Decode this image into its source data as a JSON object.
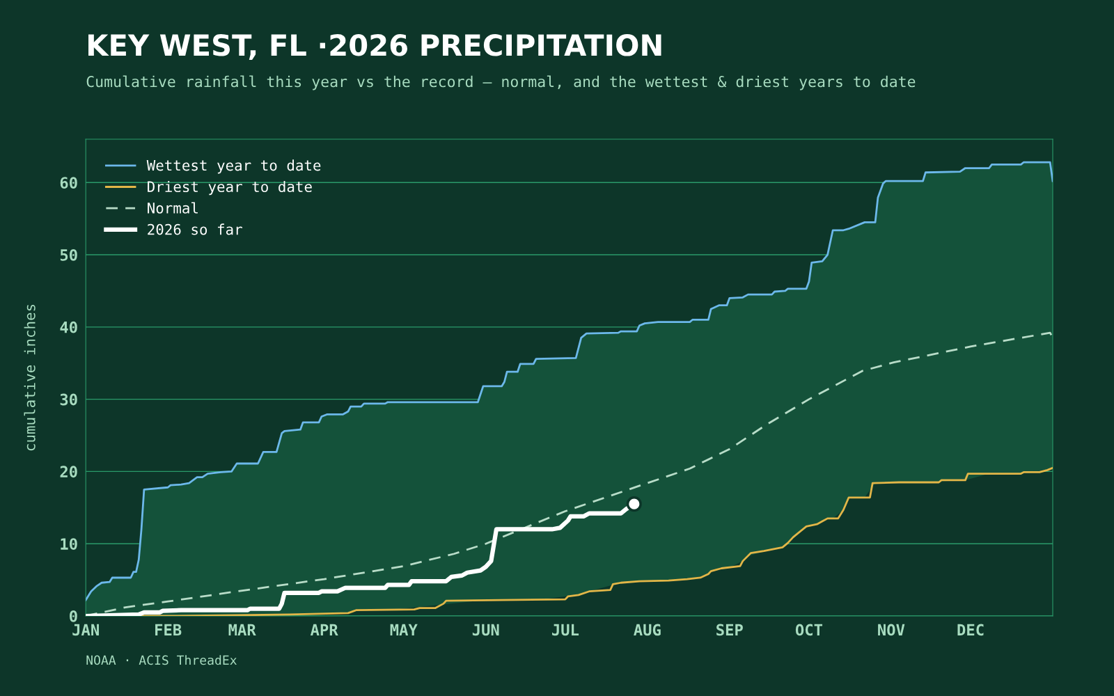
{
  "chart_data": {
    "type": "line",
    "title": "KEY WEST, FL ·2026 PRECIPITATION",
    "subtitle": "Cumulative rainfall this year vs the record — normal, and the wettest & driest years to date",
    "ylabel": "cumulative inches",
    "annotations": [
      "NOAA · ACIS ThreadEx"
    ],
    "xlim": [
      "2026-01-01",
      "2027-01-01"
    ],
    "xticks": [
      {
        "value": "2026-01-01",
        "label": "JAN"
      },
      {
        "value": "2026-02-01",
        "label": "FEB"
      },
      {
        "value": "2026-03-01",
        "label": "MAR"
      },
      {
        "value": "2026-04-01",
        "label": "APR"
      },
      {
        "value": "2026-05-01",
        "label": "MAY"
      },
      {
        "value": "2026-06-01",
        "label": "JUN"
      },
      {
        "value": "2026-07-01",
        "label": "JUL"
      },
      {
        "value": "2026-08-01",
        "label": "AUG"
      },
      {
        "value": "2026-09-01",
        "label": "SEP"
      },
      {
        "value": "2026-10-01",
        "label": "OCT"
      },
      {
        "value": "2026-11-01",
        "label": "NOV"
      },
      {
        "value": "2026-12-01",
        "label": "DEC"
      }
    ],
    "ylim": [
      0,
      66
    ],
    "yticks": [
      0,
      10,
      20,
      30,
      40,
      50,
      60
    ],
    "grid": "y",
    "legend": "top left",
    "series": [
      {
        "name": "Wettest year to date",
        "color": "#6cb8ea",
        "upper": [
          2.2,
          3.4,
          4.1,
          4.6,
          4.7,
          5.3,
          5.3,
          6.1,
          6.1,
          7.8,
          12,
          17.5,
          17.8,
          18.1,
          18.2,
          18.4,
          19.2,
          19.2,
          19.7,
          19.9,
          20.0,
          21.1,
          21.1,
          22.7,
          22.7,
          25.3,
          25.6,
          25.8,
          26.8,
          26.8,
          27.6,
          27.9,
          27.9,
          28.3,
          29.0,
          29.0,
          29.4,
          29.4,
          29.6,
          29.6,
          31.8,
          31.8,
          32.4,
          33.8,
          33.8,
          34.9,
          34.9,
          35.6,
          35.7,
          38.5,
          39.1,
          39.2,
          39.4,
          39.4,
          40.2,
          40.5,
          40.7,
          40.7,
          41.0,
          41.0,
          42.5,
          43.0,
          43.0,
          44.0,
          44.1,
          44.5,
          44.5,
          44.9,
          45.0,
          45.3,
          45.3,
          46.3,
          48.9,
          49.1,
          50.0,
          53.4,
          53.4,
          53.6,
          54.5,
          54.5,
          57.9,
          59.9,
          60.2,
          60.2,
          61.4,
          61.5,
          62.0,
          62.0,
          62.5,
          62.5,
          62.8,
          62.8,
          60.2
        ],
        "lower": [
          0,
          0,
          0,
          0,
          0,
          0,
          0,
          0,
          0,
          0,
          0,
          0,
          0,
          0,
          0,
          0,
          0,
          0,
          0,
          0,
          0.1,
          0.1,
          0.1,
          0.1,
          0.2,
          0.2,
          0.2,
          0.2,
          0.2,
          0.3,
          0.3,
          0.3,
          0.4,
          0.4,
          0.5,
          0.8,
          0.8,
          0.8,
          0.8,
          2.1,
          2.1,
          2.2,
          2.2,
          2.2,
          2.2,
          2.2,
          2.2,
          2.2,
          2.9,
          3.0,
          3.3,
          4.5,
          4.6,
          4.8,
          4.8,
          4.8,
          4.9,
          5.1,
          5.2,
          5.8,
          6.2,
          6.5,
          6.7,
          6.7,
          7.6,
          8.3,
          9.2,
          9.3,
          9.8,
          10.1,
          12.4,
          12.5,
          12.6,
          13.1,
          13.5,
          13.5,
          14.7,
          16.4,
          16.4,
          18.4,
          18.4,
          18.4,
          18.4,
          18.5,
          18.5,
          18.8,
          18.8,
          19.7,
          19.7,
          19.7,
          19.9,
          20.3,
          20.5
        ],
        "x": [
          "2026-01-01",
          "2026-01-03",
          "2026-01-05",
          "2026-01-07",
          "2026-01-10",
          "2026-01-11",
          "2026-01-18",
          "2026-01-19",
          "2026-01-20",
          "2026-01-21",
          "2026-01-22",
          "2026-01-23",
          "2026-02-01",
          "2026-02-02",
          "2026-02-06",
          "2026-02-09",
          "2026-02-12",
          "2026-02-14",
          "2026-02-16",
          "2026-02-21",
          "2026-02-25",
          "2026-02-27",
          "2026-03-07",
          "2026-03-09",
          "2026-03-14",
          "2026-03-16",
          "2026-03-17",
          "2026-03-23",
          "2026-03-24",
          "2026-03-30",
          "2026-03-31",
          "2026-04-02",
          "2026-04-08",
          "2026-04-10",
          "2026-04-11",
          "2026-04-15",
          "2026-04-16",
          "2026-04-24",
          "2026-04-25",
          "2026-05-29",
          "2026-05-31",
          "2026-06-07",
          "2026-06-08",
          "2026-06-09",
          "2026-06-13",
          "2026-06-14",
          "2026-06-19",
          "2026-06-20",
          "2026-07-05",
          "2026-07-07",
          "2026-07-09",
          "2026-07-21",
          "2026-07-22",
          "2026-07-28",
          "2026-07-29",
          "2026-07-31",
          "2026-08-05",
          "2026-08-17",
          "2026-08-18",
          "2026-08-24",
          "2026-08-25",
          "2026-08-28",
          "2026-08-31",
          "2026-09-01",
          "2026-09-06",
          "2026-09-08",
          "2026-09-17",
          "2026-09-18",
          "2026-09-22",
          "2026-09-23",
          "2026-09-30",
          "2026-10-01",
          "2026-10-02",
          "2026-10-06",
          "2026-10-08",
          "2026-10-10",
          "2026-10-14",
          "2026-10-16",
          "2026-10-22",
          "2026-10-26",
          "2026-10-27",
          "2026-10-29",
          "2026-10-30",
          "2026-11-13",
          "2026-11-14",
          "2026-11-27",
          "2026-11-29",
          "2026-12-08",
          "2026-12-09",
          "2026-12-20",
          "2026-12-21",
          "2026-12-31",
          "2027-01-01"
        ],
        "values": [
          2.2,
          3.4,
          4.1,
          4.6,
          4.7,
          5.3,
          5.3,
          6.1,
          6.1,
          7.8,
          12,
          17.5,
          17.8,
          18.1,
          18.2,
          18.4,
          19.2,
          19.2,
          19.7,
          19.9,
          20.0,
          21.1,
          21.1,
          22.7,
          22.7,
          25.3,
          25.6,
          25.8,
          26.8,
          26.8,
          27.6,
          27.9,
          27.9,
          28.3,
          29.0,
          29.0,
          29.4,
          29.4,
          29.6,
          29.6,
          31.8,
          31.8,
          32.4,
          33.8,
          33.8,
          34.9,
          34.9,
          35.6,
          35.7,
          38.5,
          39.1,
          39.2,
          39.4,
          39.4,
          40.2,
          40.5,
          40.7,
          40.7,
          41.0,
          41.0,
          42.5,
          43.0,
          43.0,
          44.0,
          44.1,
          44.5,
          44.5,
          44.9,
          45.0,
          45.3,
          45.3,
          46.3,
          48.9,
          49.1,
          50.0,
          53.4,
          53.4,
          53.6,
          54.5,
          54.5,
          57.9,
          59.9,
          60.2,
          60.2,
          61.4,
          61.5,
          62.0,
          62.0,
          62.5,
          62.5,
          62.8,
          62.8,
          60.2
        ]
      },
      {
        "name": "Driest year to date",
        "color": "#e2b648",
        "x": [
          "2026-01-01",
          "2026-02-01",
          "2026-02-27",
          "2026-03-19",
          "2026-03-30",
          "2026-04-10",
          "2026-04-13",
          "2026-05-05",
          "2026-05-07",
          "2026-05-13",
          "2026-05-16",
          "2026-05-17",
          "2026-06-07",
          "2026-07-01",
          "2026-07-02",
          "2026-07-06",
          "2026-07-10",
          "2026-07-18",
          "2026-07-19",
          "2026-07-22",
          "2026-07-29",
          "2026-08-09",
          "2026-08-16",
          "2026-08-21",
          "2026-08-24",
          "2026-08-25",
          "2026-08-29",
          "2026-09-05",
          "2026-09-06",
          "2026-09-09",
          "2026-09-14",
          "2026-09-21",
          "2026-09-23",
          "2026-09-25",
          "2026-09-27",
          "2026-09-30",
          "2026-10-04",
          "2026-10-06",
          "2026-10-08",
          "2026-10-12",
          "2026-10-14",
          "2026-10-16",
          "2026-10-24",
          "2026-10-25",
          "2026-11-04",
          "2026-11-19",
          "2026-11-20",
          "2026-11-29",
          "2026-11-30",
          "2026-12-20",
          "2026-12-21",
          "2026-12-27",
          "2026-12-30",
          "2027-01-01"
        ],
        "values": [
          0,
          0,
          0.1,
          0.2,
          0.3,
          0.4,
          0.8,
          0.9,
          1.1,
          1.1,
          1.7,
          2.1,
          2.2,
          2.3,
          2.7,
          2.9,
          3.4,
          3.6,
          4.4,
          4.6,
          4.8,
          4.9,
          5.1,
          5.3,
          5.8,
          6.2,
          6.6,
          6.9,
          7.6,
          8.7,
          9.0,
          9.5,
          10.1,
          10.9,
          11.5,
          12.4,
          12.7,
          13.1,
          13.5,
          13.5,
          14.7,
          16.4,
          16.4,
          18.4,
          18.5,
          18.5,
          18.8,
          18.8,
          19.7,
          19.7,
          19.9,
          19.9,
          20.2,
          20.5
        ]
      },
      {
        "name": "Normal",
        "color": "#b8dcc8",
        "line_style": "dashed",
        "x": [
          "2026-01-01",
          "2026-01-16",
          "2026-02-01",
          "2026-02-27",
          "2026-04-01",
          "2026-05-01",
          "2026-05-20",
          "2026-06-01",
          "2026-07-01",
          "2026-08-01",
          "2026-08-17",
          "2026-09-01",
          "2026-09-15",
          "2026-10-01",
          "2026-10-21",
          "2026-11-02",
          "2026-12-01",
          "2026-12-31",
          "2027-01-01"
        ],
        "values": [
          0,
          1.2,
          2.0,
          3.4,
          5.1,
          6.9,
          8.6,
          10.0,
          14.5,
          18.4,
          20.4,
          23.1,
          26.5,
          30.0,
          33.9,
          35.1,
          37.3,
          39.2,
          38.5
        ]
      },
      {
        "name": "2026 so far",
        "color": "#ffffff",
        "x": [
          "2026-01-01",
          "2026-01-21",
          "2026-01-23",
          "2026-01-29",
          "2026-01-30",
          "2026-02-06",
          "2026-03-03",
          "2026-03-04",
          "2026-03-15",
          "2026-03-16",
          "2026-03-17",
          "2026-03-30",
          "2026-03-31",
          "2026-04-06",
          "2026-04-09",
          "2026-04-24",
          "2026-04-25",
          "2026-05-03",
          "2026-05-04",
          "2026-05-17",
          "2026-05-19",
          "2026-05-23",
          "2026-05-25",
          "2026-05-30",
          "2026-06-01",
          "2026-06-03",
          "2026-06-05",
          "2026-06-26",
          "2026-06-29",
          "2026-07-02",
          "2026-07-03",
          "2026-07-08",
          "2026-07-10",
          "2026-07-22",
          "2026-07-24",
          "2026-07-27"
        ],
        "values": [
          0,
          0.2,
          0.5,
          0.5,
          0.7,
          0.8,
          0.8,
          1.0,
          1.0,
          1.7,
          3.2,
          3.2,
          3.4,
          3.4,
          3.9,
          3.9,
          4.3,
          4.3,
          4.8,
          4.8,
          5.4,
          5.6,
          6.0,
          6.3,
          6.8,
          7.6,
          12.0,
          12.0,
          12.2,
          13.2,
          13.8,
          13.8,
          14.2,
          14.2,
          14.8,
          15.5
        ]
      },
      {
        "type": "scatter",
        "color": "#ffffff",
        "x": [
          "2026-07-27"
        ],
        "values": [
          15.5
        ]
      }
    ]
  }
}
